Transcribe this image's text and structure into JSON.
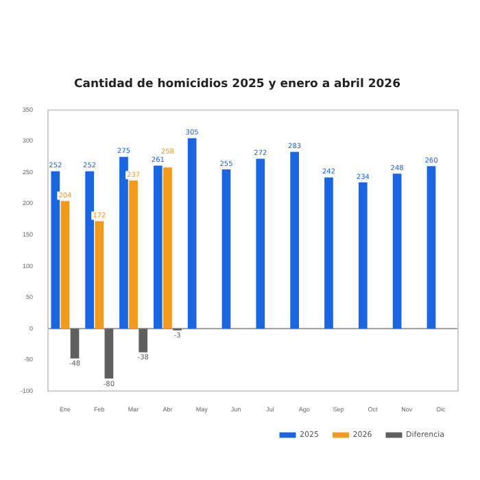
{
  "chart_data": {
    "type": "bar",
    "title": "Cantidad de homicidios 2025 y enero a abril 2026",
    "categories": [
      "Ene",
      "Feb",
      "Mar",
      "Abr",
      "May",
      "Jun",
      "Jul",
      "Ago",
      "Sep",
      "Oct",
      "Nov",
      "Dic"
    ],
    "series": [
      {
        "name": "2025",
        "color": "#1a66e0",
        "values": [
          252,
          252,
          275,
          261,
          305,
          255,
          272,
          283,
          242,
          234,
          248,
          260
        ]
      },
      {
        "name": "2026",
        "color": "#f39a1e",
        "values": [
          204,
          172,
          237,
          258,
          null,
          null,
          null,
          null,
          null,
          null,
          null,
          null
        ]
      },
      {
        "name": "Diferencia",
        "color": "#5f5f5f",
        "values": [
          -48,
          -80,
          -38,
          -3,
          null,
          null,
          null,
          null,
          null,
          null,
          null,
          null
        ]
      }
    ],
    "ylim": [
      -100,
      350
    ],
    "yticks": [
      -100,
      -50,
      0,
      50,
      100,
      150,
      200,
      250,
      300,
      350
    ],
    "ref_lines": [
      {
        "axis": "y",
        "value": 0,
        "color": "#999999"
      }
    ],
    "grid": false,
    "legend": "bottom",
    "data_labels": true
  }
}
